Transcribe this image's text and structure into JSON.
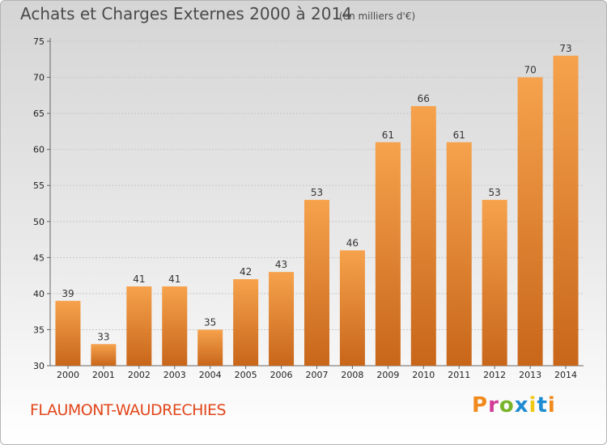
{
  "header": {
    "title": "Achats et Charges Externes 2000 à 2014",
    "unit": "(en milliers d'€)"
  },
  "footer": {
    "commune": "FLAUMONT-WAUDRECHIES",
    "brand": "Proxiti",
    "brand_colors": [
      "#f08a1c",
      "#d23c96",
      "#78b428",
      "#1e8cd2",
      "#f0c814",
      "#1e8cd2",
      "#f08a1c"
    ]
  },
  "colors": {
    "bar_light": "#f6a24c",
    "bar_dark": "#c8661a",
    "commune_text": "#e2461a",
    "grid": "#c8c8c8"
  },
  "chart_data": {
    "type": "bar",
    "title": "Achats et Charges Externes 2000 à 2014",
    "subtitle": "(en milliers d'€)",
    "xlabel": "",
    "ylabel": "",
    "categories": [
      "2000",
      "2001",
      "2002",
      "2003",
      "2004",
      "2005",
      "2006",
      "2007",
      "2008",
      "2009",
      "2010",
      "2011",
      "2012",
      "2013",
      "2014"
    ],
    "values": [
      39,
      33,
      41,
      41,
      35,
      42,
      43,
      53,
      46,
      61,
      66,
      61,
      53,
      70,
      73
    ],
    "ylim": [
      30,
      75
    ],
    "yticks": [
      30,
      35,
      40,
      45,
      50,
      55,
      60,
      65,
      70,
      75
    ],
    "grid": true,
    "data_labels": true
  }
}
